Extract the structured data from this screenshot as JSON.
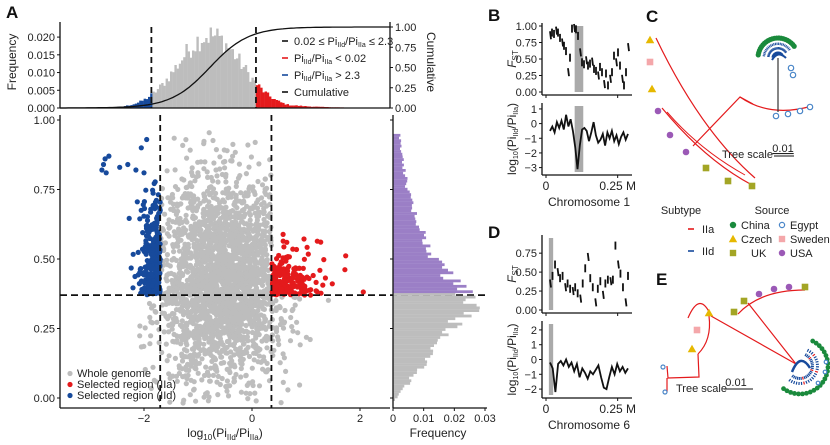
{
  "panel_labels": {
    "A": "A",
    "B": "B",
    "C": "C",
    "D": "D",
    "E": "E"
  },
  "colors": {
    "gray": "#bdbdbd",
    "red": "#e41a1c",
    "blue": "#174a9c",
    "purple": "#9b7fc6",
    "green": "#1a8a3c",
    "egypt": "#4a86c8",
    "yellow": "#e6b800",
    "pink": "#f4a7aa",
    "olive": "#a3a525",
    "usa": "#9b59b6",
    "black": "#111111"
  },
  "chart_data": [
    {
      "id": "A-top",
      "type": "bar",
      "title": "",
      "xlabel": "",
      "ylabel": "Frequency",
      "y2label": "Cumulative",
      "xlim": [
        -3.5,
        3.0
      ],
      "ylim": [
        0,
        0.022
      ],
      "y2lim": [
        0,
        1
      ],
      "yticks": [
        "0.000",
        "0.005",
        "0.010",
        "0.015",
        "0.020"
      ],
      "y2ticks": [
        "0.00",
        "0.25",
        "0.50",
        "0.75",
        "1.00"
      ],
      "thresholds_x": [
        -1.7,
        0.36
      ],
      "legend": [
        {
          "label": "0.02 ≤ Pi",
          "sub1": "IId",
          "mid": "/Pi",
          "sub2": "IIa",
          "tail": " ≤ 2.3",
          "color": "#111111"
        },
        {
          "label": "Pi",
          "sub1": "IId",
          "mid": "/Pi",
          "sub2": "IIa",
          "tail": " < 0.02",
          "color": "#e41a1c"
        },
        {
          "label": "Pi",
          "sub1": "IId",
          "mid": "/Pi",
          "sub2": "IIa",
          "tail": " > 2.3",
          "color": "#174a9c"
        },
        {
          "label": "Cumulative",
          "sub1": "",
          "mid": "",
          "sub2": "",
          "tail": "",
          "color": "#111111"
        }
      ],
      "legend_placement": "top-right",
      "distribution": {
        "mean": -0.55,
        "sd": 0.62,
        "peak_frequency": 0.021
      }
    },
    {
      "id": "A-scatter",
      "type": "scatter",
      "xlabel": "log10(PiIId/PiIIa)",
      "xlabel_parts": {
        "pre": "log",
        "sub0": "10",
        "open": "(Pi",
        "sub1": "IId",
        "mid": "/Pi",
        "sub2": "IIa",
        "close": ")"
      },
      "ylabel": "",
      "xlim": [
        -3.0,
        2.8
      ],
      "ylim": [
        -0.04,
        1.02
      ],
      "xticks": [
        {
          "v": -2,
          "label": "−2"
        },
        {
          "v": 0,
          "label": "0"
        },
        {
          "v": 2,
          "label": "2"
        }
      ],
      "yticks": [
        {
          "v": 0,
          "label": "0.00"
        },
        {
          "v": 0.25,
          "label": "0.25"
        },
        {
          "v": 0.5,
          "label": "0.50"
        },
        {
          "v": 0.75,
          "label": "0.75"
        },
        {
          "v": 1.0,
          "label": "1.00"
        }
      ],
      "threshold_x": [
        -1.7,
        0.36
      ],
      "threshold_y": 0.37,
      "series": [
        {
          "name": "Whole genome",
          "color": "#bdbdbd",
          "center": [
            -0.55,
            0.42
          ],
          "spread": [
            0.6,
            0.18
          ],
          "count": 2600
        },
        {
          "name": "Selected region (IIa)",
          "color": "#e41a1c",
          "x_range": [
            0.36,
            2.2
          ],
          "y_range": [
            0.37,
            0.62
          ],
          "count": 190
        },
        {
          "name": "Selected region (IId)",
          "color": "#174a9c",
          "x_range": [
            -2.75,
            -1.7
          ],
          "y_range": [
            0.37,
            0.94
          ],
          "count": 280
        }
      ],
      "legend_placement": "bottom-left"
    },
    {
      "id": "A-right",
      "type": "bar",
      "orientation": "horizontal",
      "xlabel": "Frequency",
      "xlim": [
        0,
        0.03
      ],
      "xticks": [
        "0",
        "0.01",
        "0.02",
        "0.03"
      ],
      "ylim": [
        -0.04,
        1.02
      ],
      "threshold_y": 0.37,
      "peak_frequency": 0.028,
      "peak_y": 0.34
    },
    {
      "id": "B",
      "type": "line",
      "xlabel": "Chromosome 1",
      "xticks": [
        "0",
        "0.25 M"
      ],
      "xlim": [
        0,
        0.3
      ],
      "highlight_x": [
        0.1,
        0.13
      ],
      "top": {
        "ylabel": "FST",
        "ylim": [
          0,
          1
        ],
        "yticks": [
          "0.00",
          "0.25",
          "0.50",
          "0.75",
          "1.00"
        ],
        "values": [
          0.86,
          0.9,
          0.88,
          0.93,
          0.9,
          0.82,
          0.75,
          0.7,
          0.62,
          0.3,
          0.52,
          0.96,
          0.97,
          0.95,
          0.85,
          0.6,
          0.45,
          0.42,
          0.48,
          0.4,
          0.43,
          0.46,
          0.35,
          0.32,
          0.25,
          0.38,
          0.3,
          0.12,
          0.28,
          0.1,
          0.2,
          0.3,
          0.55,
          0.45,
          0.6,
          0.4,
          0.2,
          0.1,
          0.3,
          0.68
        ]
      },
      "bottom": {
        "ylabel": "log10(PiIId/PiIIa)",
        "ylim": [
          -3.3,
          1.2
        ],
        "yticks": [
          "−3",
          "−2",
          "−1",
          "0",
          "1"
        ],
        "values": [
          -0.5,
          -0.2,
          -0.6,
          0.1,
          -0.3,
          0.2,
          -0.4,
          0.6,
          -0.2,
          0.3,
          -0.5,
          -1.6,
          -3.1,
          -1.5,
          -0.4,
          -0.3,
          -0.5,
          -1.2,
          -0.6,
          0.1,
          -0.8,
          -1.3,
          -1.1,
          -0.7,
          -1.5,
          -0.6,
          -1.0,
          -0.5,
          -1.2,
          -0.8,
          -1.4,
          -0.9,
          -0.6,
          -1.1,
          -0.7
        ]
      }
    },
    {
      "id": "D",
      "type": "line",
      "xlabel": "Chromosome 6",
      "xticks": [
        "0",
        "0.25 M"
      ],
      "xlim": [
        0,
        0.3
      ],
      "highlight_x": [
        0.01,
        0.025
      ],
      "top": {
        "ylabel": "FST",
        "ylim": [
          0,
          0.95
        ],
        "yticks": [
          "0.00",
          "0.25",
          "0.50",
          "0.75"
        ],
        "values": [
          0.35,
          0.45,
          0.6,
          0.5,
          0.42,
          0.45,
          0.3,
          0.35,
          0.28,
          0.25,
          0.3,
          0.22,
          0.15,
          0.35,
          0.55,
          0.7,
          0.42,
          0.3,
          0.1,
          0.28,
          0.38,
          0.2,
          0.35,
          0.4,
          0.38,
          0.4,
          0.85,
          0.6,
          0.48,
          0.3,
          0.1,
          0.45
        ]
      },
      "bottom": {
        "ylabel": "log10(PiIId/PiIIa)",
        "ylim": [
          -2.4,
          2.4
        ],
        "yticks": [
          "−2",
          "−1",
          "0",
          "1",
          "2"
        ],
        "values": [
          -0.2,
          -0.6,
          -2.2,
          -0.3,
          -0.1,
          -0.4,
          0.0,
          -0.5,
          -0.2,
          -0.8,
          -0.3,
          -1.2,
          -0.6,
          -0.9,
          -1.3,
          -0.8,
          -1.0,
          -0.7,
          -0.4,
          -1.2,
          -1.9,
          -2.0,
          -1.2,
          -0.5,
          -1.0,
          -0.3,
          -0.8,
          -0.5,
          -0.9,
          -0.6
        ]
      }
    },
    {
      "id": "C",
      "type": "tree",
      "scale_label": "Tree scale",
      "scale_value": "0.01"
    },
    {
      "id": "E",
      "type": "tree",
      "scale_label": "Tree scale",
      "scale_value": "0.01"
    }
  ],
  "tree_legend": {
    "subtype_title": "Subtype",
    "source_title": "Source",
    "subtypes": [
      {
        "label": "IIa",
        "color": "#e41a1c"
      },
      {
        "label": "IId",
        "color": "#174a9c"
      }
    ],
    "sources": [
      {
        "label": "China",
        "shape": "circle-filled",
        "color": "#1a8a3c"
      },
      {
        "label": "Egypt",
        "shape": "circle-open",
        "color": "#4a86c8"
      },
      {
        "label": "Czech",
        "shape": "triangle",
        "color": "#e6b800"
      },
      {
        "label": "Sweden",
        "shape": "square",
        "color": "#f4a7aa"
      },
      {
        "label": "UK",
        "shape": "square",
        "color": "#a3a525"
      },
      {
        "label": "USA",
        "shape": "circle-filled",
        "color": "#9b59b6"
      }
    ]
  }
}
